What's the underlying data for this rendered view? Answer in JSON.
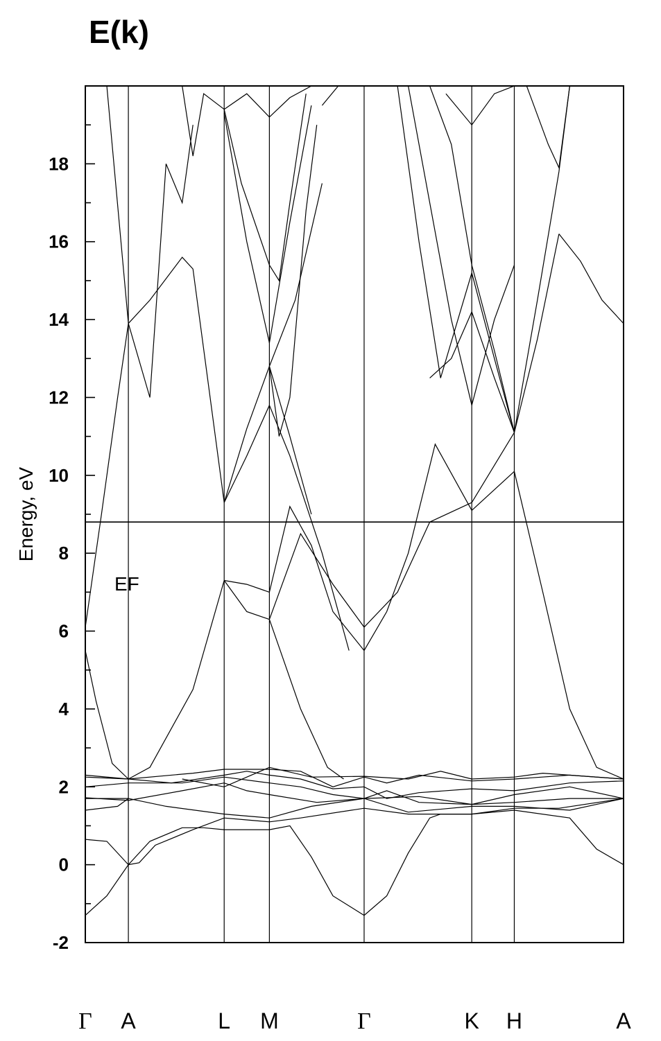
{
  "chart_data": {
    "type": "line",
    "title": "E(k)",
    "ylabel": "Energy, eV",
    "xlabel": "",
    "ylim": [
      -2,
      20
    ],
    "yticks": [
      "-2",
      "0",
      "2",
      "4",
      "6",
      "8",
      "10",
      "12",
      "14",
      "16",
      "18"
    ],
    "kpoints": [
      {
        "label": "Γ",
        "pos": 0.0
      },
      {
        "label": "A",
        "pos": 0.08
      },
      {
        "label": "L",
        "pos": 0.258
      },
      {
        "label": "M",
        "pos": 0.342
      },
      {
        "label": "Γ",
        "pos": 0.518
      },
      {
        "label": "K",
        "pos": 0.718
      },
      {
        "label": "H",
        "pos": 0.797
      },
      {
        "label": "A",
        "pos": 1.0
      }
    ],
    "fermi_level": {
      "label": "EF",
      "value": 8.8
    },
    "series": [
      {
        "x": [
          0,
          0.04,
          0.08,
          0.12,
          0.18,
          0.22,
          0.258
        ],
        "y": [
          -1.3,
          -0.8,
          0.0,
          0.6,
          0.95,
          0.95,
          0.9
        ]
      },
      {
        "x": [
          0.258,
          0.342
        ],
        "y": [
          0.9,
          0.9
        ]
      },
      {
        "x": [
          0.342,
          0.38,
          0.42,
          0.46,
          0.518,
          0.56,
          0.6,
          0.64,
          0.66,
          0.718
        ],
        "y": [
          0.9,
          1.0,
          0.2,
          -0.8,
          -1.3,
          -0.8,
          0.3,
          1.2,
          1.3,
          1.3
        ]
      },
      {
        "x": [
          0.718,
          0.797,
          0.9,
          0.95,
          1.0
        ],
        "y": [
          1.3,
          1.4,
          1.2,
          0.4,
          0.0
        ]
      },
      {
        "x": [
          0,
          0.04,
          0.08
        ],
        "y": [
          0.65,
          0.6,
          0.0
        ]
      },
      {
        "x": [
          0.08,
          0.1,
          0.13,
          0.2,
          0.258,
          0.3,
          0.342
        ],
        "y": [
          0.0,
          0.05,
          0.5,
          0.9,
          1.2,
          1.15,
          1.1
        ]
      },
      {
        "x": [
          0.342,
          0.4,
          0.518,
          0.6,
          0.718,
          0.797,
          0.88,
          1.0
        ],
        "y": [
          1.1,
          1.2,
          1.45,
          1.3,
          1.3,
          1.45,
          1.45,
          1.7
        ]
      },
      {
        "x": [
          0,
          0.06,
          0.08
        ],
        "y": [
          1.4,
          1.5,
          1.7
        ]
      },
      {
        "x": [
          0,
          0.08,
          0.15,
          0.258,
          0.342,
          0.42,
          0.518,
          0.6,
          0.718,
          0.797,
          0.9,
          1.0
        ],
        "y": [
          1.7,
          1.7,
          1.5,
          1.3,
          1.2,
          1.5,
          1.7,
          1.35,
          1.5,
          1.5,
          1.4,
          1.7
        ]
      },
      {
        "x": [
          0,
          0.08,
          0.18,
          0.258,
          0.3,
          0.342,
          0.43,
          0.518,
          0.62,
          0.718,
          0.797,
          0.9,
          1.0
        ],
        "y": [
          1.72,
          1.65,
          1.9,
          2.1,
          1.9,
          1.8,
          1.6,
          1.7,
          1.75,
          1.55,
          1.6,
          1.7,
          1.7
        ]
      },
      {
        "x": [
          0,
          0.08,
          0.18,
          0.258,
          0.342,
          0.4,
          0.46,
          0.518,
          0.56,
          0.62,
          0.718,
          0.797,
          0.9,
          1.0
        ],
        "y": [
          2.0,
          2.1,
          2.1,
          2.25,
          2.1,
          2.0,
          1.8,
          1.7,
          1.9,
          1.6,
          1.55,
          1.8,
          2.0,
          1.7
        ]
      },
      {
        "x": [
          0,
          0.08,
          0.16,
          0.258,
          0.3,
          0.342,
          0.4,
          0.46,
          0.518,
          0.56,
          0.62,
          0.718,
          0.797,
          0.9,
          1.0
        ],
        "y": [
          2.25,
          2.2,
          2.1,
          2.3,
          2.4,
          2.3,
          2.2,
          1.95,
          2.0,
          1.7,
          1.85,
          1.95,
          1.9,
          2.1,
          2.15
        ]
      },
      {
        "x": [
          0,
          0.08,
          0.2,
          0.258,
          0.342,
          0.4,
          0.46,
          0.518,
          0.56,
          0.62,
          0.718,
          0.797,
          0.9,
          1.0
        ],
        "y": [
          2.3,
          2.2,
          2.35,
          2.45,
          2.45,
          2.4,
          2.0,
          2.25,
          2.1,
          2.3,
          2.15,
          2.2,
          2.3,
          2.2
        ]
      },
      {
        "x": [
          0.18,
          0.258,
          0.342,
          0.42,
          0.518,
          0.6,
          0.66,
          0.718,
          0.797,
          0.85,
          1.0
        ],
        "y": [
          2.2,
          2.0,
          2.5,
          2.25,
          2.27,
          2.2,
          2.4,
          2.2,
          2.25,
          2.35,
          2.2
        ]
      },
      {
        "x": [
          0,
          0.02,
          0.05,
          0.08
        ],
        "y": [
          5.5,
          4.2,
          2.6,
          2.2
        ]
      },
      {
        "x": [
          0.08,
          0.12,
          0.2,
          0.258
        ],
        "y": [
          2.2,
          2.5,
          4.5,
          7.3
        ]
      },
      {
        "x": [
          0.258,
          0.3,
          0.342
        ],
        "y": [
          7.3,
          7.2,
          7.0
        ]
      },
      {
        "x": [
          0.342,
          0.38,
          0.42,
          0.46,
          0.518
        ],
        "y": [
          7.0,
          9.2,
          8.2,
          6.5,
          5.5
        ]
      },
      {
        "x": [
          0.518,
          0.56,
          0.6,
          0.65,
          0.718
        ],
        "y": [
          5.5,
          6.5,
          8.0,
          10.8,
          9.1
        ]
      },
      {
        "x": [
          0.718,
          0.797
        ],
        "y": [
          9.1,
          10.1
        ]
      },
      {
        "x": [
          0.797,
          0.85,
          0.9,
          0.95,
          1.0
        ],
        "y": [
          10.1,
          7.0,
          4.0,
          2.5,
          2.2
        ]
      },
      {
        "x": [
          0.258,
          0.3,
          0.342
        ],
        "y": [
          7.3,
          6.5,
          6.3
        ]
      },
      {
        "x": [
          0.342,
          0.4,
          0.45,
          0.48
        ],
        "y": [
          6.3,
          4.0,
          2.5,
          2.2
        ]
      },
      {
        "x": [
          0.342,
          0.4,
          0.46,
          0.518,
          0.58,
          0.64,
          0.718
        ],
        "y": [
          6.3,
          8.5,
          7.2,
          6.1,
          7.0,
          8.8,
          9.3
        ]
      },
      {
        "x": [
          0.718,
          0.797
        ],
        "y": [
          9.3,
          11.1
        ]
      },
      {
        "x": [
          0,
          0.03,
          0.06,
          0.08
        ],
        "y": [
          6.1,
          9.0,
          12.0,
          13.9
        ]
      },
      {
        "x": [
          0.08,
          0.12,
          0.18,
          0.2,
          0.258
        ],
        "y": [
          13.9,
          14.5,
          15.6,
          15.3,
          9.3
        ]
      },
      {
        "x": [
          0.258,
          0.3,
          0.342
        ],
        "y": [
          9.3,
          10.5,
          11.8
        ]
      },
      {
        "x": [
          0.342,
          0.38,
          0.44,
          0.49
        ],
        "y": [
          11.8,
          10.5,
          8.0,
          5.5
        ]
      },
      {
        "x": [
          0.342,
          0.38,
          0.42
        ],
        "y": [
          12.8,
          11.0,
          9.0
        ]
      },
      {
        "x": [
          0.258,
          0.3,
          0.342
        ],
        "y": [
          9.3,
          11.2,
          12.8
        ]
      },
      {
        "x": [
          0.342,
          0.39,
          0.44
        ],
        "y": [
          12.8,
          14.5,
          17.5
        ]
      },
      {
        "x": [
          0.342,
          0.36,
          0.38,
          0.41,
          0.43
        ],
        "y": [
          12.8,
          11.0,
          12.0,
          16.8,
          19.0
        ]
      },
      {
        "x": [
          0.342,
          0.38,
          0.42
        ],
        "y": [
          13.4,
          16.5,
          19.5
        ]
      },
      {
        "x": [
          0.258,
          0.3,
          0.342
        ],
        "y": [
          19.3,
          16.0,
          13.4
        ]
      },
      {
        "x": [
          0.258,
          0.29,
          0.342
        ],
        "y": [
          19.4,
          17.5,
          15.4
        ]
      },
      {
        "x": [
          0.342,
          0.36,
          0.38,
          0.41
        ],
        "y": [
          15.4,
          15.0,
          17.0,
          19.8
        ]
      },
      {
        "x": [
          0.04,
          0.08,
          0.12,
          0.15,
          0.18,
          0.2
        ],
        "y": [
          20.0,
          13.9,
          12.0,
          18.0,
          17.0,
          19.0
        ]
      },
      {
        "x": [
          0.18,
          0.2,
          0.22,
          0.258
        ],
        "y": [
          20.0,
          18.2,
          19.8,
          19.4
        ]
      },
      {
        "x": [
          0.258,
          0.3,
          0.342,
          0.38,
          0.42
        ],
        "y": [
          19.4,
          19.8,
          19.2,
          19.7,
          20.0
        ]
      },
      {
        "x": [
          0.44,
          0.47,
          0.5
        ],
        "y": [
          19.5,
          20.0,
          20.0
        ]
      },
      {
        "x": [
          0.58,
          0.62,
          0.66,
          0.718
        ],
        "y": [
          20.0,
          16.0,
          12.5,
          15.2
        ]
      },
      {
        "x": [
          0.718,
          0.76,
          0.797
        ],
        "y": [
          15.2,
          13.0,
          11.1
        ]
      },
      {
        "x": [
          0.797,
          0.84,
          0.88,
          0.9
        ],
        "y": [
          11.1,
          14.5,
          17.8,
          20.0
        ]
      },
      {
        "x": [
          0.6,
          0.64,
          0.68,
          0.718
        ],
        "y": [
          20.0,
          17.0,
          14.0,
          11.8
        ]
      },
      {
        "x": [
          0.718,
          0.76,
          0.797
        ],
        "y": [
          11.8,
          14.0,
          15.4
        ]
      },
      {
        "x": [
          0.64,
          0.68,
          0.718
        ],
        "y": [
          20.0,
          18.5,
          15.4
        ]
      },
      {
        "x": [
          0.718,
          0.76,
          0.797
        ],
        "y": [
          15.4,
          13.2,
          11.1
        ]
      },
      {
        "x": [
          0.797,
          0.84,
          0.88
        ],
        "y": [
          11.1,
          13.5,
          16.2
        ]
      },
      {
        "x": [
          0.88,
          0.92,
          0.96,
          1.0
        ],
        "y": [
          16.2,
          15.5,
          14.5,
          13.9
        ]
      },
      {
        "x": [
          0.67,
          0.718,
          0.76,
          0.797
        ],
        "y": [
          19.8,
          19.0,
          19.8,
          20.0
        ]
      },
      {
        "x": [
          0.82,
          0.86,
          0.88,
          0.9
        ],
        "y": [
          20.0,
          18.5,
          17.9,
          20.0
        ]
      },
      {
        "x": [
          0.64,
          0.68,
          0.718
        ],
        "y": [
          12.5,
          13.0,
          14.2
        ]
      },
      {
        "x": [
          0.718,
          0.76,
          0.797
        ],
        "y": [
          14.2,
          12.5,
          11.1
        ]
      }
    ]
  }
}
